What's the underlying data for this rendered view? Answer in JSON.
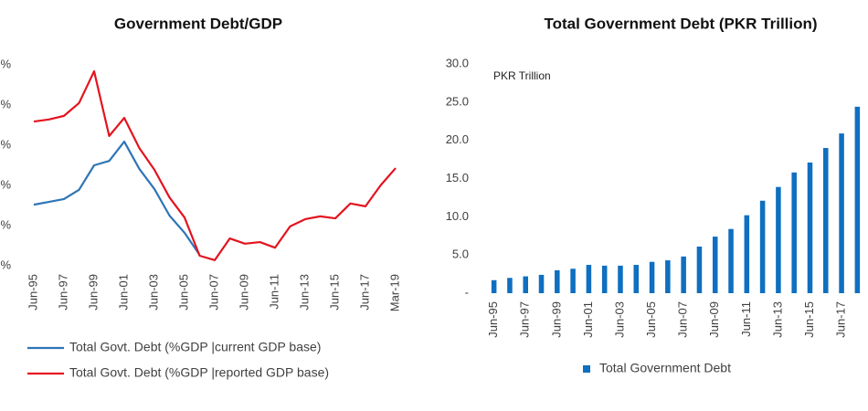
{
  "chart_data": [
    {
      "type": "line",
      "title": "Government Debt/GDP",
      "categories": [
        "Jun-95",
        null,
        "Jun-97",
        null,
        "Jun-99",
        null,
        "Jun-01",
        null,
        "Jun-03",
        null,
        "Jun-05",
        null,
        "Jun-07",
        null,
        "Jun-09",
        null,
        "Jun-11",
        null,
        "Jun-13",
        null,
        "Jun-15",
        null,
        "Jun-17",
        null,
        "Mar-19"
      ],
      "series": [
        {
          "name": "Total Govt. Debt (%GDP |current GDP base)",
          "color": "#2e75b6",
          "values": [
            65.2,
            65.9,
            66.6,
            68.9,
            75,
            76.1,
            80.9,
            74.1,
            69.1,
            62.5,
            58.2,
            52.7,
            null,
            null,
            null,
            null,
            null,
            null,
            null,
            null,
            null,
            null,
            null,
            null,
            null
          ]
        },
        {
          "name": "Total Govt. Debt (%GDP |reported GDP base)",
          "color": "#e3141f",
          "values": [
            85.9,
            86.4,
            87.3,
            90.5,
            98.4,
            82.3,
            86.8,
            79.3,
            73.9,
            67,
            62,
            52.5,
            51.4,
            56.8,
            55.5,
            55.9,
            54.5,
            59.8,
            61.6,
            62.3,
            61.8,
            65.5,
            64.8,
            70,
            74.3
          ]
        }
      ],
      "ylim": [
        50,
        100
      ],
      "yticks": [
        {
          "value": 50,
          "label": "%"
        },
        {
          "value": 60,
          "label": "%"
        },
        {
          "value": 70,
          "label": "%"
        },
        {
          "value": 80,
          "label": "%"
        },
        {
          "value": 90,
          "label": "%"
        },
        {
          "value": 100,
          "label": "%"
        }
      ],
      "legend": "bottom"
    },
    {
      "type": "bar",
      "title": "Total Government Debt (PKR Trillion)",
      "annotation": "PKR Trillion",
      "categories": [
        "Jun-95",
        null,
        "Jun-97",
        null,
        "Jun-99",
        null,
        "Jun-01",
        null,
        "Jun-03",
        null,
        "Jun-05",
        null,
        "Jun-07",
        null,
        "Jun-09",
        null,
        "Jun-11",
        null,
        "Jun-13",
        null,
        "Jun-15",
        null,
        "Jun-17",
        null
      ],
      "series": [
        {
          "name": "Total Government Debt",
          "color": "#0f6fc0",
          "values": [
            1.7,
            2.0,
            2.2,
            2.4,
            3.0,
            3.2,
            3.7,
            3.6,
            3.6,
            3.7,
            4.1,
            4.3,
            4.8,
            6.1,
            7.4,
            8.4,
            10.2,
            12.1,
            13.9,
            15.8,
            17.1,
            19.0,
            20.9,
            24.4
          ]
        }
      ],
      "ylim": [
        0,
        30
      ],
      "yticks": [
        {
          "value": 0,
          "label": "-"
        },
        {
          "value": 5,
          "label": "5.0"
        },
        {
          "value": 10,
          "label": "10.0"
        },
        {
          "value": 15,
          "label": "15.0"
        },
        {
          "value": 20,
          "label": "20.0"
        },
        {
          "value": 25,
          "label": "25.0"
        },
        {
          "value": 30,
          "label": "30.0"
        }
      ],
      "legend": "bottom"
    }
  ]
}
